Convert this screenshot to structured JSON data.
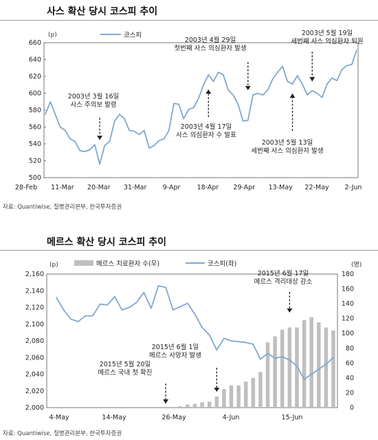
{
  "charts": {
    "sars": {
      "title": "사스 확산 당시 코스피 추이",
      "source": "자료: Quantiwise, 질병관리본부, 한국투자증권",
      "chart_data": {
        "type": "line",
        "ylabel": "(p)",
        "ylim": [
          500,
          660
        ],
        "yticks": [
          500,
          520,
          540,
          560,
          580,
          600,
          620,
          640,
          660
        ],
        "xtick_labels": [
          "28-Feb",
          "11-Mar",
          "20-Mar",
          "31-Mar",
          "9-Apr",
          "18-Apr",
          "29-Apr",
          "13-May",
          "22-May",
          "2-Jun"
        ],
        "legend": [
          "코스피"
        ],
        "legend_position": "top-left",
        "series": [
          {
            "name": "코스피",
            "color": "#7fa7cf",
            "values": [
              575,
              590,
              575,
              560,
              556,
              546,
              543,
              532,
              531,
              533,
              539,
              516,
              538,
              543,
              567,
              575,
              570,
              556,
              555,
              551,
              556,
              535,
              538,
              544,
              546,
              556,
              588,
              587,
              570,
              581,
              583,
              594,
              610,
              622,
              614,
              625,
              622,
              604,
              598,
              587,
              567,
              568,
              598,
              600,
              598,
              604,
              617,
              625,
              632,
              614,
              611,
              621,
              611,
              598,
              603,
              600,
              595,
              611,
              618,
              615,
              628,
              633,
              634,
              651
            ]
          }
        ],
        "annotations": [
          {
            "text": "2003년 3월 16일\n사스 주의보 발령",
            "x_index": 11,
            "arrow": "down"
          },
          {
            "text": "2003년 4월 17일\n사스 의심환자 수 발표",
            "x_index": 33,
            "arrow": "up"
          },
          {
            "text": "2003년 4월 29일\n첫번째 사스 의심환자 발생",
            "x_index": 41,
            "arrow": "down"
          },
          {
            "text": "2003년 5월 13일\n세번째 사스 의심환자 발생",
            "x_index": 50,
            "arrow": "up"
          },
          {
            "text": "2003년 5월 19일\n세번째 사스 의심환자 퇴원",
            "x_index": 54,
            "arrow": "down"
          }
        ]
      }
    },
    "mers": {
      "title": "메르스 확산 당시 코스피 추이",
      "source": "자료: Quantiwise, 질병관리본부, 한국투자증권",
      "chart_data": {
        "type": "bar+line",
        "ylabel_left": "(p)",
        "ylabel_right": "(명)",
        "ylim_left": [
          2000,
          2160
        ],
        "yticks_left": [
          2000,
          2020,
          2040,
          2060,
          2080,
          2100,
          2120,
          2140,
          2160
        ],
        "ylim_right": [
          0,
          180
        ],
        "yticks_right": [
          0,
          20,
          40,
          60,
          80,
          100,
          120,
          140,
          160,
          180
        ],
        "xtick_labels": [
          "4-May",
          "14-May",
          "26-May",
          "4-Jun",
          "15-Jun"
        ],
        "legend": [
          "메르스 치료환자 수(우)",
          "코스피(좌)"
        ],
        "legend_position": "top",
        "series": [
          {
            "name": "코스피(좌)",
            "axis": "left",
            "type": "line",
            "color": "#7fa7cf",
            "values": [
              2132,
              2117,
              2106,
              2103,
              2110,
              2110,
              2124,
              2123,
              2133,
              2117,
              2120,
              2126,
              2138,
              2119,
              2146,
              2144,
              2117,
              2121,
              2125,
              2112,
              2096,
              2087,
              2069,
              2083,
              2080,
              2079,
              2078,
              2076,
              2058,
              2065,
              2059,
              2061,
              2057,
              2050,
              2034,
              2040,
              2046,
              2052,
              2060
            ]
          },
          {
            "name": "메르스 치료환자 수(우)",
            "axis": "right",
            "type": "bar",
            "color": "#bfbfbf",
            "values": [
              0,
              0,
              0,
              0,
              0,
              0,
              0,
              0,
              0,
              0,
              0,
              0,
              0,
              0,
              0,
              0,
              1,
              2,
              4,
              5,
              7,
              8,
              15,
              25,
              30,
              30,
              35,
              40,
              48,
              88,
              96,
              105,
              108,
              108,
              118,
              122,
              115,
              108,
              104
            ]
          }
        ],
        "annotations": [
          {
            "text": "2015년 5월 20일\n메르스 국내 첫 확진",
            "x_index": 15,
            "arrow": "down"
          },
          {
            "text": "2015년 6월 1일\n메르스 사망자 발생",
            "x_index": 22,
            "arrow": "down"
          },
          {
            "text": "2015년 6월 17일\n메르스 격리대상 감소",
            "x_index": 32,
            "arrow": "down"
          }
        ]
      }
    }
  }
}
